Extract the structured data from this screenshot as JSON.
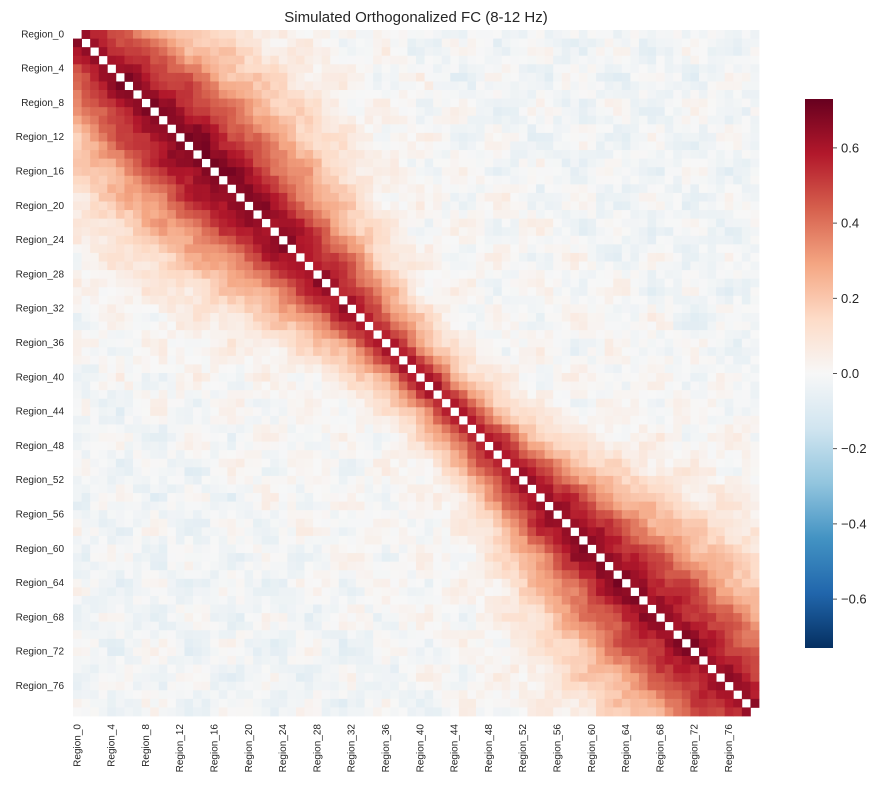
{
  "chart_data": {
    "type": "heatmap",
    "title": "Simulated Orthogonalized FC (8-12 Hz)",
    "xlabel": "",
    "ylabel": "",
    "n_regions": 80,
    "region_prefix": "Region_",
    "tick_labels": [
      "Region_0",
      "Region_4",
      "Region_8",
      "Region_12",
      "Region_16",
      "Region_20",
      "Region_24",
      "Region_28",
      "Region_32",
      "Region_36",
      "Region_40",
      "Region_44",
      "Region_48",
      "Region_52",
      "Region_56",
      "Region_60",
      "Region_64",
      "Region_68",
      "Region_72",
      "Region_76"
    ],
    "tick_step": 4,
    "diagonal": "masked (blank)",
    "colormap": "RdBu_r",
    "colorbar": {
      "vmin": -0.73,
      "vmax": 0.73,
      "ticks": [
        -0.6,
        -0.4,
        -0.2,
        0.0,
        0.2,
        0.4,
        0.6
      ],
      "tick_labels": [
        "−0.6",
        "−0.4",
        "−0.2",
        "0.0",
        "0.2",
        "0.4",
        "0.6"
      ],
      "placement": "right"
    },
    "structure": {
      "description_values": "Correlation decays with index distance |i-j| from the diagonal; near-diagonal values ~0.55-0.72, mid-range ~0.2-0.4, far off-diagonal ~ -0.05 to 0.05",
      "band_peak_near_diagonal": 0.7,
      "far_value_range": [
        -0.06,
        0.06
      ]
    }
  }
}
